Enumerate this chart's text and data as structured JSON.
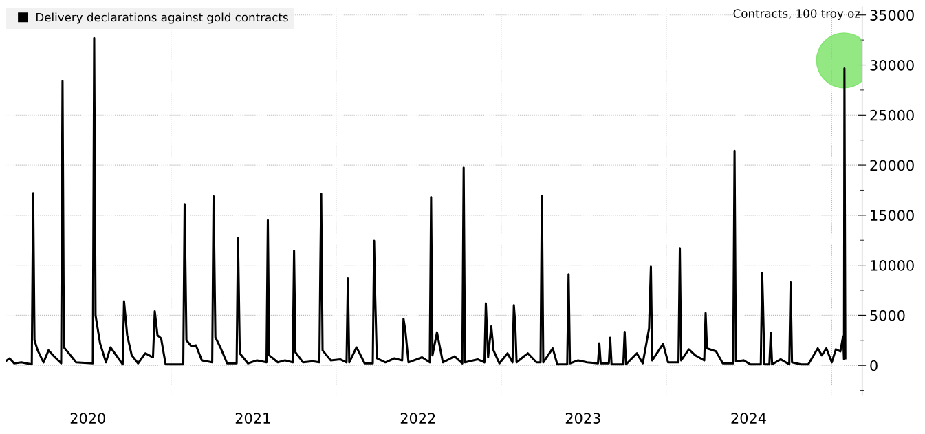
{
  "chart_data": {
    "type": "line",
    "ylabel": "Contracts, 100 troy oz",
    "xlim": [
      "2020-01-01",
      "2025-03-09"
    ],
    "ylim": [
      -3000,
      35800
    ],
    "yticks": [
      0,
      5000,
      10000,
      15000,
      20000,
      25000,
      30000,
      35000
    ],
    "xticks": [
      {
        "value": "2020-07-01",
        "label": "2020"
      },
      {
        "value": "2021-01-01",
        "label": null
      },
      {
        "value": "2021-07-01",
        "label": "2021"
      },
      {
        "value": "2022-01-01",
        "label": null
      },
      {
        "value": "2022-07-01",
        "label": "2022"
      },
      {
        "value": "2023-01-01",
        "label": null
      },
      {
        "value": "2023-07-01",
        "label": "2023"
      },
      {
        "value": "2024-01-01",
        "label": null
      },
      {
        "value": "2024-07-01",
        "label": "2024"
      },
      {
        "value": "2025-01-01",
        "label": null
      }
    ],
    "grid": true,
    "legend": "top left",
    "marker": "none",
    "line_style": "solid",
    "series": [
      {
        "name": "Delivery declarations against gold contracts",
        "color": "#000000",
        "x": [
          "2020-01-01",
          "2020-01-10",
          "2020-01-20",
          "2020-02-05",
          "2020-02-28",
          "2020-03-02",
          "2020-03-05",
          "2020-03-12",
          "2020-03-25",
          "2020-04-05",
          "2020-04-15",
          "2020-05-03",
          "2020-05-06",
          "2020-05-09",
          "2020-05-20",
          "2020-06-05",
          "2020-07-12",
          "2020-07-15",
          "2020-07-18",
          "2020-07-28",
          "2020-08-10",
          "2020-08-20",
          "2020-09-16",
          "2020-09-19",
          "2020-09-26",
          "2020-10-06",
          "2020-10-20",
          "2020-11-05",
          "2020-11-22",
          "2020-11-26",
          "2020-12-02",
          "2020-12-10",
          "2020-12-20",
          "2021-01-28",
          "2021-01-31",
          "2021-02-04",
          "2021-02-15",
          "2021-02-25",
          "2021-03-10",
          "2021-04-02",
          "2021-04-05",
          "2021-04-09",
          "2021-04-20",
          "2021-05-05",
          "2021-05-26",
          "2021-05-29",
          "2021-06-02",
          "2021-06-20",
          "2021-07-10",
          "2021-07-31",
          "2021-08-03",
          "2021-08-06",
          "2021-08-25",
          "2021-09-10",
          "2021-09-27",
          "2021-09-30",
          "2021-10-03",
          "2021-10-20",
          "2021-11-10",
          "2021-11-25",
          "2021-11-27",
          "2021-11-29",
          "2021-12-02",
          "2021-12-20",
          "2022-01-10",
          "2022-01-24",
          "2022-01-27",
          "2022-01-30",
          "2022-02-15",
          "2022-02-22",
          "2022-03-05",
          "2022-03-23",
          "2022-03-26",
          "2022-03-28",
          "2022-04-01",
          "2022-04-20",
          "2022-05-10",
          "2022-05-27",
          "2022-05-30",
          "2022-06-03",
          "2022-06-10",
          "2022-07-10",
          "2022-07-27",
          "2022-07-30",
          "2022-08-02",
          "2022-08-12",
          "2022-08-25",
          "2022-09-20",
          "2022-10-07",
          "2022-10-10",
          "2022-10-13",
          "2022-11-10",
          "2022-11-25",
          "2022-11-28",
          "2022-12-03",
          "2022-12-10",
          "2022-12-15",
          "2022-12-28",
          "2023-01-15",
          "2023-01-26",
          "2023-01-29",
          "2023-02-01",
          "2023-02-04",
          "2023-03-01",
          "2023-03-20",
          "2023-03-29",
          "2023-04-01",
          "2023-04-04",
          "2023-04-25",
          "2023-05-05",
          "2023-05-27",
          "2023-05-30",
          "2023-06-02",
          "2023-06-20",
          "2023-07-10",
          "2023-08-03",
          "2023-08-06",
          "2023-08-09",
          "2023-08-27",
          "2023-08-30",
          "2023-09-02",
          "2023-09-28",
          "2023-10-01",
          "2023-10-04",
          "2023-10-28",
          "2023-11-10",
          "2023-11-24",
          "2023-11-28",
          "2023-12-01",
          "2023-12-25",
          "2024-01-05",
          "2024-01-28",
          "2024-01-31",
          "2024-02-03",
          "2024-02-20",
          "2024-03-05",
          "2024-03-25",
          "2024-03-28",
          "2024-03-31",
          "2024-04-20",
          "2024-05-05",
          "2024-05-28",
          "2024-05-31",
          "2024-06-03",
          "2024-06-20",
          "2024-07-05",
          "2024-07-28",
          "2024-07-31",
          "2024-08-02",
          "2024-08-05",
          "2024-08-16",
          "2024-08-19",
          "2024-08-22",
          "2024-09-10",
          "2024-09-29",
          "2024-10-02",
          "2024-10-05",
          "2024-10-25",
          "2024-11-10",
          "2024-12-01",
          "2024-12-10",
          "2024-12-20",
          "2025-01-01",
          "2025-01-10",
          "2025-01-20",
          "2025-01-26",
          "2025-01-28",
          "2025-01-29",
          "2025-01-31"
        ],
        "values": [
          400,
          700,
          200,
          300,
          100,
          17200,
          2500,
          1500,
          300,
          1500,
          1000,
          200,
          28400,
          1800,
          1200,
          300,
          200,
          32700,
          5000,
          2200,
          300,
          1800,
          100,
          6400,
          3000,
          1000,
          200,
          1200,
          800,
          5400,
          3000,
          2700,
          100,
          100,
          16100,
          2500,
          1900,
          2000,
          500,
          300,
          16900,
          2800,
          1800,
          200,
          200,
          12700,
          1200,
          200,
          500,
          300,
          14500,
          1000,
          300,
          500,
          300,
          11450,
          1300,
          300,
          400,
          300,
          9600,
          17150,
          1500,
          500,
          600,
          300,
          8700,
          300,
          1800,
          1200,
          200,
          200,
          12450,
          7500,
          700,
          300,
          700,
          500,
          4650,
          3500,
          300,
          800,
          300,
          16800,
          1000,
          3300,
          300,
          900,
          200,
          19750,
          300,
          600,
          300,
          6200,
          800,
          3900,
          1500,
          200,
          1200,
          300,
          6000,
          4200,
          300,
          1200,
          300,
          300,
          16950,
          300,
          1700,
          100,
          100,
          9100,
          200,
          500,
          300,
          200,
          2200,
          200,
          200,
          2750,
          100,
          100,
          3350,
          100,
          1200,
          200,
          3700,
          9850,
          500,
          2150,
          300,
          300,
          11700,
          500,
          1600,
          1000,
          500,
          5230,
          1700,
          1400,
          200,
          200,
          21430,
          400,
          500,
          100,
          100,
          9250,
          5980,
          100,
          100,
          3260,
          100,
          600,
          100,
          8300,
          300,
          100,
          100,
          1700,
          1000,
          1700,
          300,
          1600,
          1400,
          2900,
          600,
          29650,
          700
        ]
      },
      {
        "type": "scatter",
        "color": "#6fe05a",
        "marker": "circle",
        "x": [
          "2025-01-28"
        ],
        "values": [
          30460
        ]
      }
    ]
  }
}
